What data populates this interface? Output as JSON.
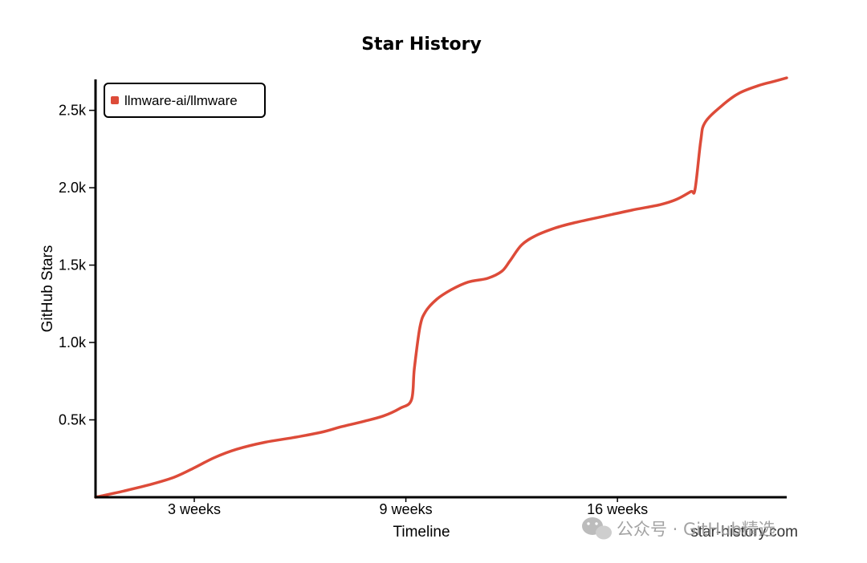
{
  "chart_data": {
    "type": "line",
    "title": "Star History",
    "xlabel": "Timeline",
    "ylabel": "GitHub Stars",
    "x_unit": "weeks",
    "xlim": [
      0,
      24.5
    ],
    "ylim": [
      0,
      2700
    ],
    "x_ticks": [
      {
        "value": 3.5,
        "label": "3 weeks"
      },
      {
        "value": 11,
        "label": "9 weeks"
      },
      {
        "value": 18.5,
        "label": "16 weeks"
      }
    ],
    "y_ticks": [
      {
        "value": 500,
        "label": "0.5k"
      },
      {
        "value": 1000,
        "label": "1.0k"
      },
      {
        "value": 1500,
        "label": "1.5k"
      },
      {
        "value": 2000,
        "label": "2.0k"
      },
      {
        "value": 2500,
        "label": "2.5k"
      }
    ],
    "grid": false,
    "legend_position": "top-left",
    "series": [
      {
        "name": "llmware-ai/llmware",
        "color": "#dd4b39",
        "points": [
          [
            0,
            0
          ],
          [
            1.0,
            40
          ],
          [
            2.0,
            85
          ],
          [
            2.8,
            130
          ],
          [
            3.5,
            190
          ],
          [
            4.2,
            255
          ],
          [
            5.0,
            310
          ],
          [
            6.0,
            355
          ],
          [
            7.0,
            385
          ],
          [
            8.0,
            420
          ],
          [
            8.7,
            455
          ],
          [
            9.5,
            490
          ],
          [
            10.2,
            525
          ],
          [
            10.8,
            575
          ],
          [
            11.2,
            630
          ],
          [
            11.3,
            830
          ],
          [
            11.5,
            1100
          ],
          [
            11.7,
            1200
          ],
          [
            12.1,
            1280
          ],
          [
            12.6,
            1340
          ],
          [
            13.2,
            1390
          ],
          [
            13.9,
            1415
          ],
          [
            14.4,
            1460
          ],
          [
            14.7,
            1530
          ],
          [
            15.1,
            1630
          ],
          [
            15.6,
            1690
          ],
          [
            16.3,
            1740
          ],
          [
            17.0,
            1775
          ],
          [
            18.0,
            1815
          ],
          [
            19.0,
            1855
          ],
          [
            20.0,
            1890
          ],
          [
            20.6,
            1925
          ],
          [
            21.1,
            1975
          ],
          [
            21.25,
            1990
          ],
          [
            21.45,
            2300
          ],
          [
            21.6,
            2420
          ],
          [
            22.2,
            2530
          ],
          [
            22.8,
            2610
          ],
          [
            23.5,
            2660
          ],
          [
            24.0,
            2685
          ],
          [
            24.5,
            2710
          ]
        ]
      }
    ]
  },
  "credit": "star-history.com",
  "watermark": "公众号 · GitHub精选"
}
